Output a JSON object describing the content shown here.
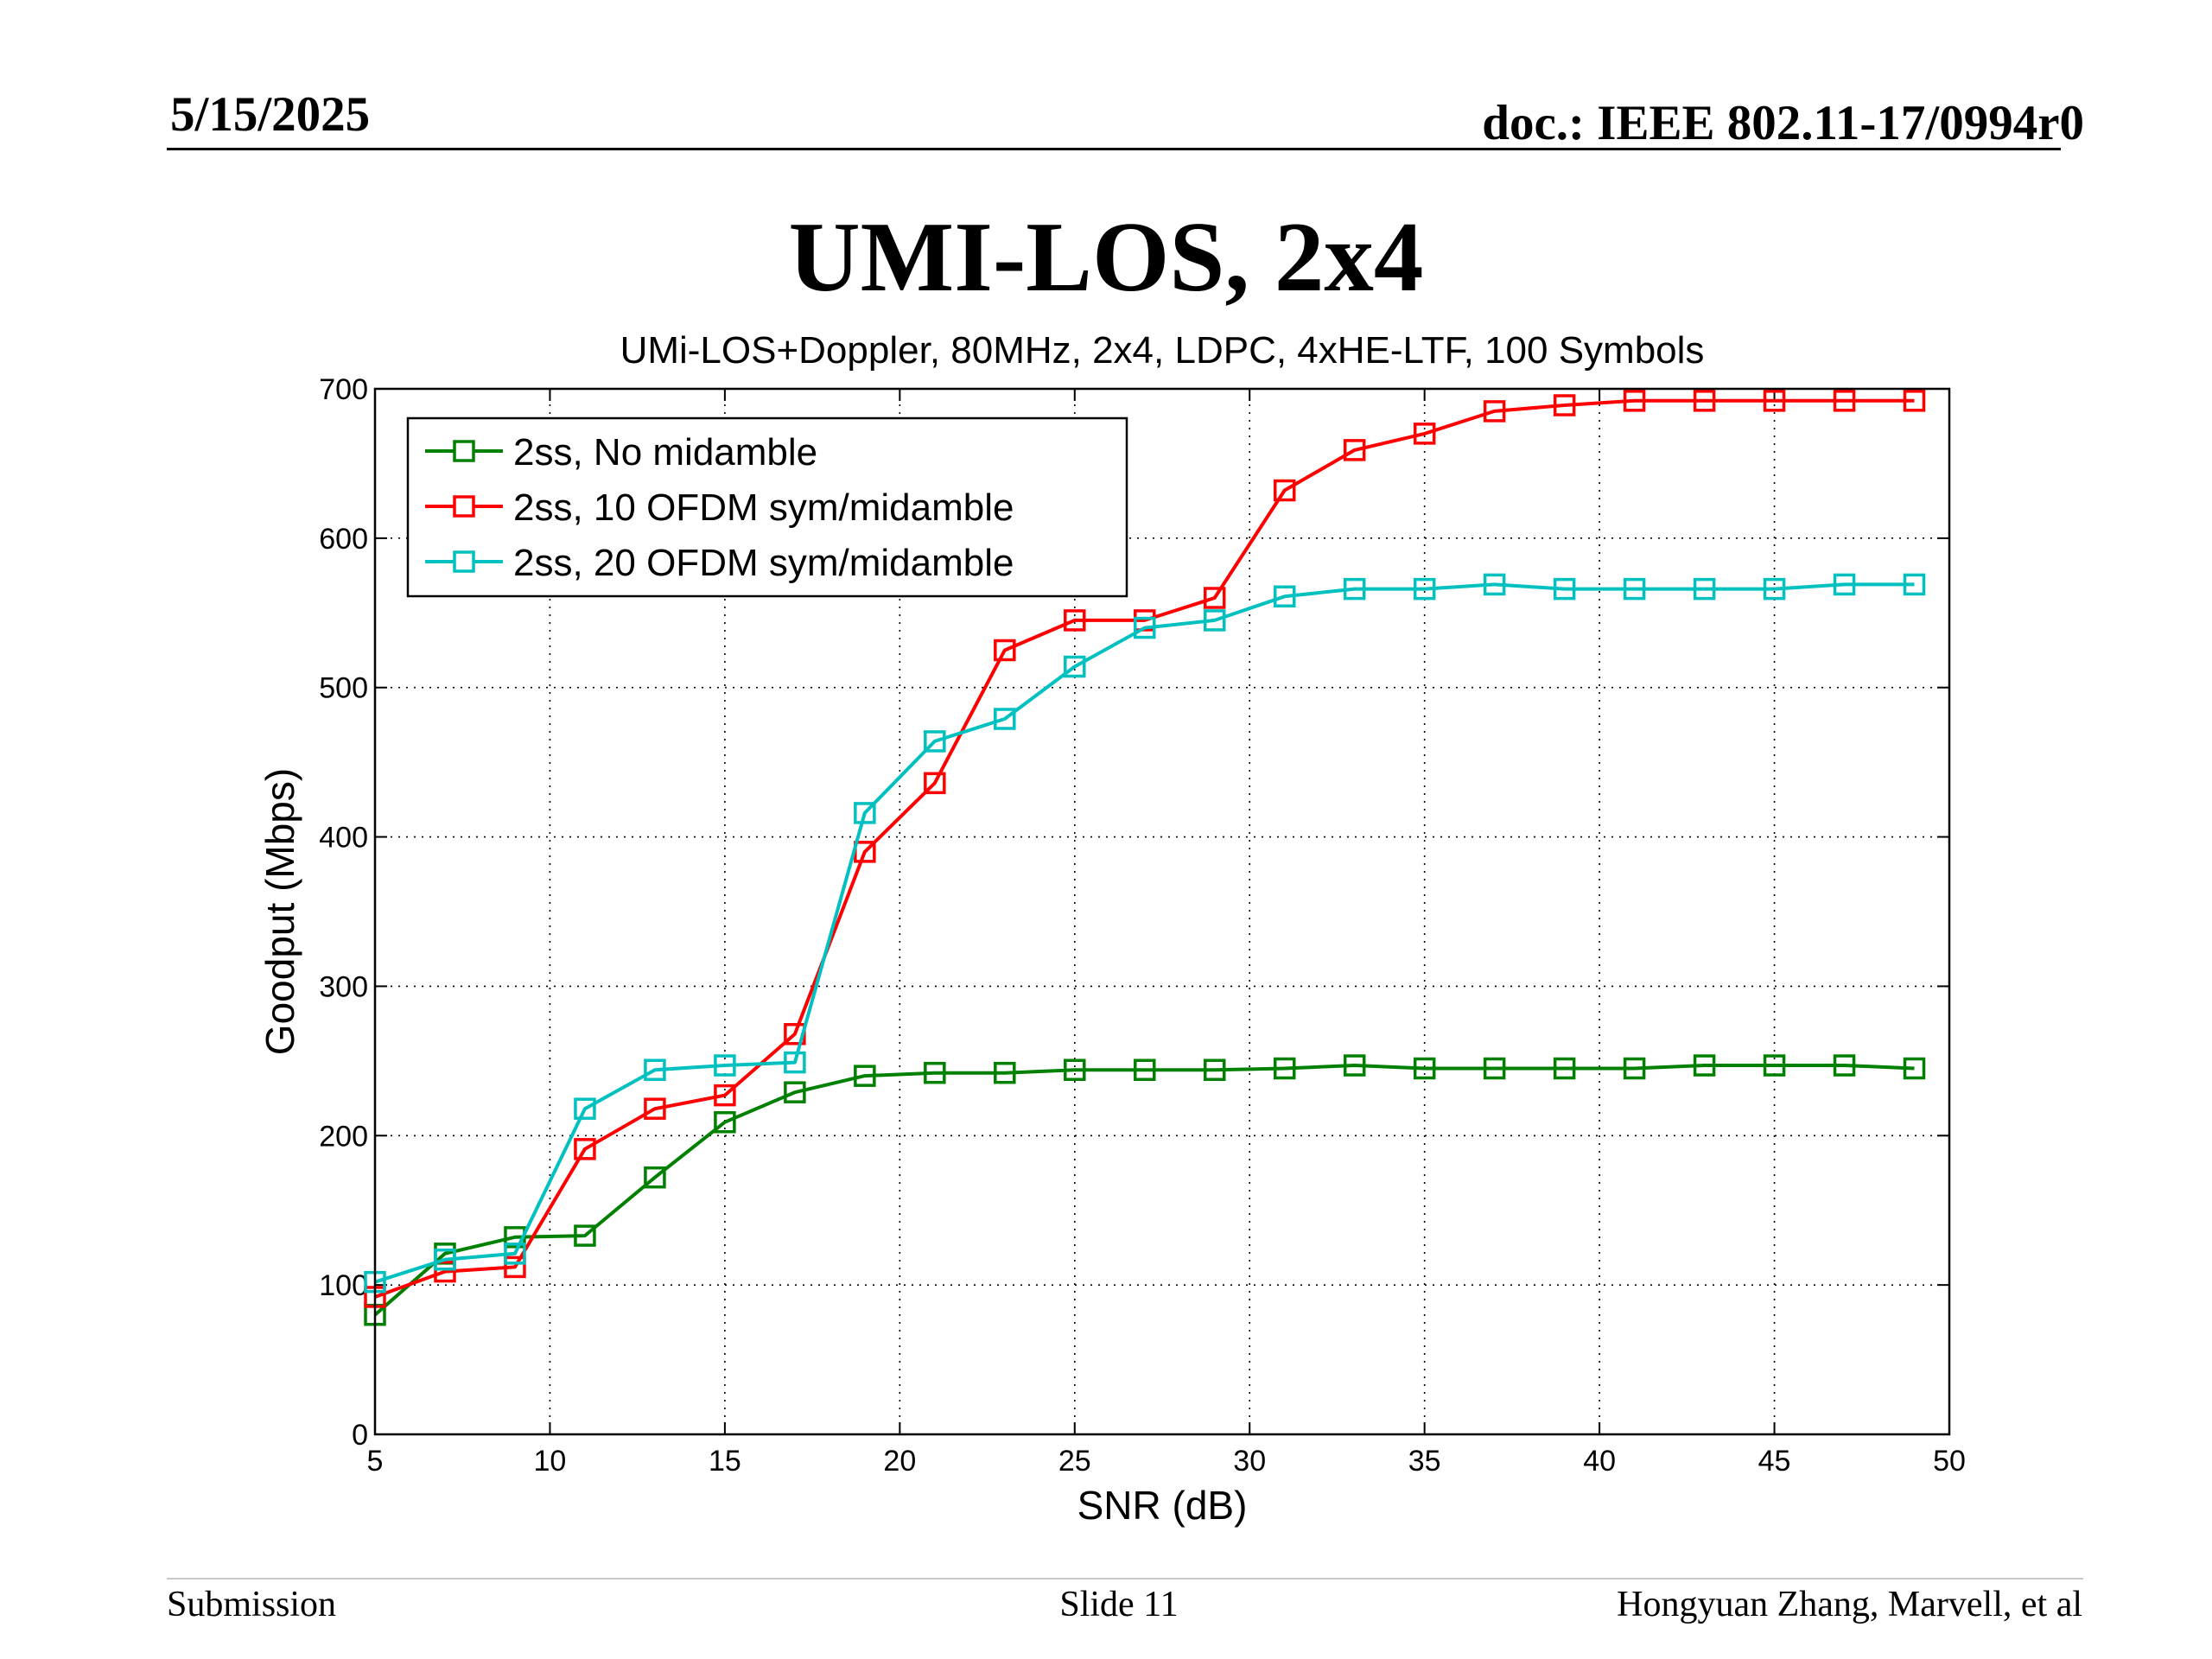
{
  "header": {
    "date": "5/15/2025",
    "doc": "doc.: IEEE 802.11-17/0994r0"
  },
  "slide_title": "UMI-LOS, 2x4",
  "footer": {
    "left": "Submission",
    "center": "Slide 11",
    "right": "Hongyuan Zhang, Marvell, et al"
  },
  "chart_data": {
    "type": "line",
    "title": "UMi-LOS+Doppler, 80MHz, 2x4, LDPC, 4xHE-LTF, 100 Symbols",
    "xlabel": "SNR (dB)",
    "ylabel": "Goodput (Mbps)",
    "xlim": [
      5,
      50
    ],
    "ylim": [
      0,
      700
    ],
    "xticks": [
      5,
      10,
      15,
      20,
      25,
      30,
      35,
      40,
      45,
      50
    ],
    "yticks": [
      0,
      100,
      200,
      300,
      400,
      500,
      600,
      700
    ],
    "grid": true,
    "grid_style": "dotted",
    "legend_position": "top-left",
    "marker": "square",
    "x": [
      5,
      7,
      9,
      11,
      13,
      15,
      17,
      19,
      21,
      23,
      25,
      27,
      29,
      31,
      33,
      35,
      37,
      39,
      41,
      43,
      45,
      47,
      49
    ],
    "series": [
      {
        "name": "2ss, No midamble",
        "color": "#008000",
        "values": [
          80,
          121,
          132,
          133,
          172,
          209,
          229,
          240,
          242,
          242,
          244,
          244,
          244,
          245,
          247,
          245,
          245,
          245,
          245,
          247,
          247,
          247,
          245
        ]
      },
      {
        "name": "2ss, 10 OFDM sym/midamble",
        "color": "#ff0000",
        "values": [
          92,
          109,
          112,
          191,
          218,
          227,
          268,
          390,
          436,
          525,
          545,
          545,
          560,
          632,
          659,
          670,
          685,
          689,
          692,
          692,
          692,
          692,
          692
        ]
      },
      {
        "name": "2ss, 20 OFDM sym/midamble",
        "color": "#00c0c0",
        "values": [
          102,
          117,
          121,
          218,
          244,
          247,
          249,
          416,
          464,
          479,
          514,
          540,
          545,
          561,
          566,
          566,
          569,
          566,
          566,
          566,
          566,
          569,
          569
        ]
      }
    ]
  }
}
